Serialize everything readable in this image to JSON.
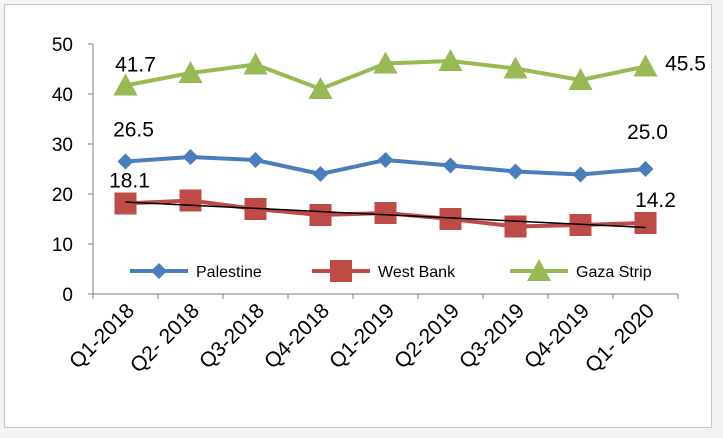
{
  "chart_data": {
    "type": "line",
    "title": "",
    "xlabel": "",
    "ylabel": "",
    "ylim": [
      0,
      50
    ],
    "yticks": [
      0,
      10,
      20,
      30,
      40,
      50
    ],
    "categories": [
      "Q1-2018",
      "Q2- 2018",
      "Q3-2018",
      "Q4-2018",
      "Q1-2019",
      "Q2-2019",
      "Q3-2019",
      "Q4-2019",
      "Q1- 2020"
    ],
    "series": [
      {
        "name": "Palestine",
        "color": "#4a7ebb",
        "marker": "diamond",
        "values": [
          26.5,
          27.4,
          26.8,
          24.0,
          26.8,
          25.7,
          24.5,
          23.9,
          25.0
        ]
      },
      {
        "name": "West Bank",
        "color": "#be4b48",
        "marker": "square",
        "values": [
          18.1,
          18.7,
          17.0,
          15.8,
          16.2,
          15.0,
          13.5,
          13.8,
          14.2
        ]
      },
      {
        "name": "Gaza Strip",
        "color": "#98b954",
        "marker": "triangle",
        "values": [
          41.7,
          44.2,
          45.9,
          41.0,
          46.1,
          46.6,
          45.1,
          42.8,
          45.5
        ]
      }
    ],
    "trendline": {
      "series": "West Bank",
      "color": "#000000",
      "values": [
        18.4,
        17.8,
        17.1,
        16.5,
        15.9,
        15.2,
        14.6,
        13.9,
        13.3
      ]
    },
    "data_labels": [
      {
        "series": "Gaza Strip",
        "index": 0,
        "text": "41.7"
      },
      {
        "series": "Gaza Strip",
        "index": 8,
        "text": "45.5"
      },
      {
        "series": "Palestine",
        "index": 0,
        "text": "26.5"
      },
      {
        "series": "Palestine",
        "index": 8,
        "text": "25.0"
      },
      {
        "series": "West Bank",
        "index": 0,
        "text": "18.1"
      },
      {
        "series": "West Bank",
        "index": 8,
        "text": "14.2"
      }
    ],
    "legend": {
      "position": "inside-bottom",
      "entries": [
        "Palestine",
        "West Bank",
        "Gaza Strip"
      ]
    },
    "grid": false
  }
}
